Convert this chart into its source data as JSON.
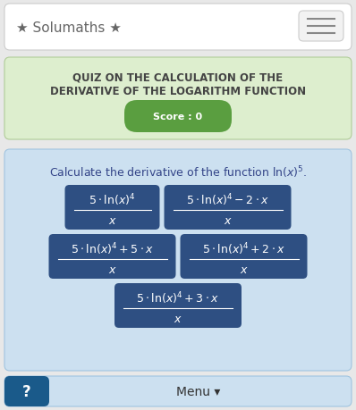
{
  "bg_color": "#e8e8e8",
  "header_bg": "#ffffff",
  "header_text": "★ Solumaths ★",
  "header_text_color": "#666666",
  "header_fontsize": 11,
  "quiz_panel_bg": "#ddeece",
  "quiz_title_line1": "QUIZ ON THE CALCULATION OF THE",
  "quiz_title_line2": "DERIVATIVE OF THE LOGARITHM FUNCTION",
  "quiz_title_color": "#444444",
  "quiz_title_fontsize": 8.5,
  "score_bg": "#5a9e40",
  "score_text": "Score : 0",
  "score_text_color": "#ffffff",
  "score_fontsize": 8,
  "question_panel_bg": "#cce0f0",
  "question_text_color": "#334488",
  "question_fontsize": 9,
  "button_bg": "#2e4f82",
  "button_text_color": "#ffffff",
  "button_fontsize": 8,
  "menu_bar_bg": "#cce0f0",
  "menu_text": "Menu ▾",
  "menu_fontsize": 10,
  "help_bg": "#1a5a8a",
  "hamburger_color": "#888888"
}
